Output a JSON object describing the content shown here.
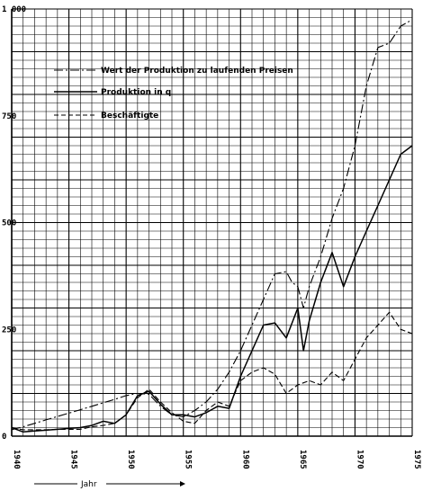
{
  "chart_data": {
    "type": "line",
    "xlabel": "Jahr",
    "xlim": [
      1940,
      1975
    ],
    "ylim": [
      0,
      1000
    ],
    "x_ticks": [
      1940,
      1945,
      1950,
      1955,
      1960,
      1965,
      1970,
      1975
    ],
    "y_ticks": [
      0,
      250,
      500,
      750,
      1000
    ],
    "y_tick_labels": [
      "0",
      "250",
      "500",
      "750",
      "1 000"
    ],
    "x_tick_labels": [
      "1940",
      "1945",
      "1950",
      "1955",
      "1960",
      "1965",
      "1970",
      "1975"
    ],
    "grid": true,
    "legend_position": "top-left",
    "series": [
      {
        "name": "Wert der Produktion zu laufenden Preisen",
        "style": "dash-dot",
        "color": "#000000",
        "x": [
          1940,
          1941,
          1942,
          1943,
          1944,
          1945,
          1946,
          1947,
          1948,
          1949,
          1950,
          1951,
          1952,
          1953,
          1954,
          1955,
          1956,
          1957,
          1958,
          1959,
          1960,
          1961,
          1962,
          1963,
          1964,
          1964.5,
          1965,
          1965.5,
          1966,
          1967,
          1968,
          1969,
          1970,
          1971,
          1972,
          1973,
          1974,
          1975
        ],
        "y": [
          15,
          22,
          30,
          38,
          46,
          54,
          62,
          70,
          78,
          86,
          95,
          100,
          98,
          70,
          50,
          45,
          60,
          80,
          110,
          150,
          200,
          260,
          320,
          380,
          385,
          360,
          350,
          300,
          350,
          420,
          510,
          580,
          680,
          820,
          910,
          920,
          960,
          975
        ]
      },
      {
        "name": "Produktion in q",
        "style": "solid",
        "color": "#000000",
        "x": [
          1940,
          1941,
          1942,
          1943,
          1944,
          1945,
          1946,
          1947,
          1948,
          1949,
          1950,
          1951,
          1952,
          1953,
          1954,
          1955,
          1956,
          1957,
          1958,
          1959,
          1960,
          1961,
          1962,
          1963,
          1964,
          1965,
          1965.5,
          1966,
          1967,
          1968,
          1969,
          1970,
          1971,
          1972,
          1973,
          1974,
          1975
        ],
        "y": [
          20,
          10,
          12,
          14,
          16,
          18,
          20,
          25,
          35,
          30,
          50,
          95,
          105,
          75,
          50,
          50,
          45,
          55,
          70,
          65,
          140,
          200,
          260,
          265,
          230,
          300,
          200,
          270,
          360,
          430,
          350,
          420,
          480,
          540,
          600,
          660,
          680
        ]
      },
      {
        "name": "Beschäftigte",
        "style": "dashed",
        "color": "#000000",
        "x": [
          1940,
          1941,
          1942,
          1943,
          1944,
          1945,
          1946,
          1947,
          1948,
          1949,
          1950,
          1951,
          1952,
          1953,
          1954,
          1955,
          1956,
          1957,
          1958,
          1959,
          1960,
          1961,
          1962,
          1963,
          1964,
          1965,
          1966,
          1967,
          1968,
          1969,
          1970,
          1971,
          1972,
          1973,
          1974,
          1975
        ],
        "y": [
          20,
          15,
          15,
          15,
          16,
          16,
          16,
          22,
          25,
          30,
          50,
          90,
          110,
          80,
          55,
          35,
          30,
          60,
          80,
          70,
          130,
          150,
          160,
          145,
          100,
          120,
          130,
          120,
          150,
          130,
          180,
          230,
          260,
          290,
          250,
          240
        ]
      }
    ]
  }
}
